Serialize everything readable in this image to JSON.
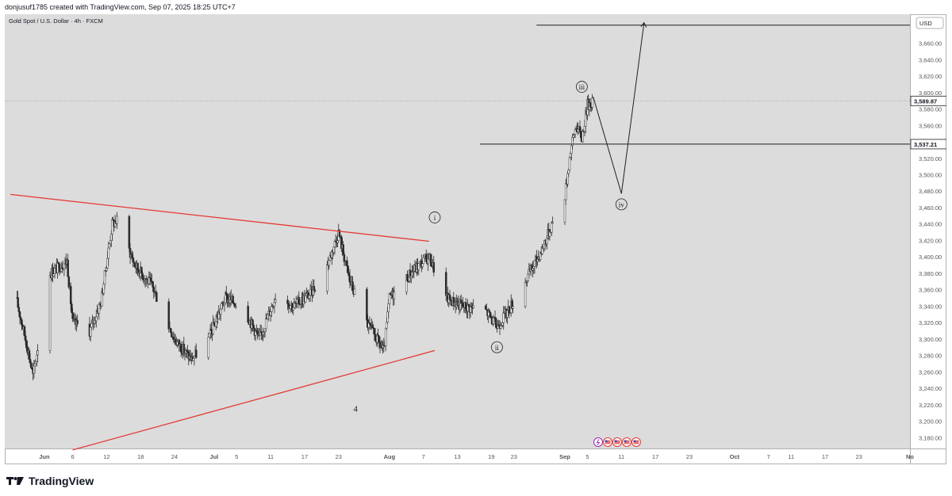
{
  "header": {
    "created_by": "donjusuf1785 created with TradingView.com, Sep 07, 2025 18:25 UTC+7"
  },
  "footer": {
    "brand": "TradingView",
    "logo_icon": "tradingview-logo-icon"
  },
  "colors": {
    "pane_bg": "#dcdcdc",
    "candle": "#2a2a2a",
    "trendline": "#e53935",
    "text": "#131722",
    "axis_text": "#555555"
  },
  "chart_data": {
    "type": "candlestick",
    "title": "Gold Spot / U.S. Dollar · 4h · FXCM",
    "currency_label": "USD",
    "ylim": [
      3165,
      3700
    ],
    "y_ticks": [
      "3,180.00",
      "3,200.00",
      "3,220.00",
      "3,240.00",
      "3,260.00",
      "3,280.00",
      "3,300.00",
      "3,320.00",
      "3,340.00",
      "3,360.00",
      "3,380.00",
      "3,400.00",
      "3,420.00",
      "3,440.00",
      "3,460.00",
      "3,480.00",
      "3,500.00",
      "3,520.00",
      "3,540.00",
      "3,560.00",
      "3,580.00",
      "3,600.00",
      "3,620.00",
      "3,640.00",
      "3,660.00"
    ],
    "x_ticks": [
      {
        "label": "Jun",
        "date": "2025-06-01",
        "bold": true
      },
      {
        "label": "6",
        "date": "2025-06-06"
      },
      {
        "label": "12",
        "date": "2025-06-12"
      },
      {
        "label": "18",
        "date": "2025-06-18"
      },
      {
        "label": "24",
        "date": "2025-06-24"
      },
      {
        "label": "Jul",
        "date": "2025-07-01",
        "bold": true
      },
      {
        "label": "5",
        "date": "2025-07-05"
      },
      {
        "label": "11",
        "date": "2025-07-11"
      },
      {
        "label": "17",
        "date": "2025-07-17"
      },
      {
        "label": "23",
        "date": "2025-07-23"
      },
      {
        "label": "Aug",
        "date": "2025-08-01",
        "bold": true
      },
      {
        "label": "7",
        "date": "2025-08-07"
      },
      {
        "label": "13",
        "date": "2025-08-13"
      },
      {
        "label": "19",
        "date": "2025-08-19"
      },
      {
        "label": "23",
        "date": "2025-08-23"
      },
      {
        "label": "Sep",
        "date": "2025-09-01",
        "bold": true
      },
      {
        "label": "5",
        "date": "2025-09-05"
      },
      {
        "label": "11",
        "date": "2025-09-11"
      },
      {
        "label": "17",
        "date": "2025-09-17"
      },
      {
        "label": "23",
        "date": "2025-09-23"
      },
      {
        "label": "Oct",
        "date": "2025-10-01",
        "bold": true
      },
      {
        "label": "7",
        "date": "2025-10-07"
      },
      {
        "label": "11",
        "date": "2025-10-11"
      },
      {
        "label": "17",
        "date": "2025-10-17"
      },
      {
        "label": "23",
        "date": "2025-10-23"
      },
      {
        "label": "No",
        "date": "2025-11-01",
        "bold": true
      }
    ],
    "price_path": [
      [
        "2025-05-27",
        3350
      ],
      [
        "2025-05-29",
        3290
      ],
      [
        "2025-05-30",
        3255
      ],
      [
        "2025-06-02",
        3380
      ],
      [
        "2025-06-05",
        3395
      ],
      [
        "2025-06-06",
        3320
      ],
      [
        "2025-06-09",
        3310
      ],
      [
        "2025-06-11",
        3345
      ],
      [
        "2025-06-13",
        3440
      ],
      [
        "2025-06-14",
        3445
      ],
      [
        "2025-06-17",
        3390
      ],
      [
        "2025-06-20",
        3365
      ],
      [
        "2025-06-24",
        3300
      ],
      [
        "2025-06-27",
        3275
      ],
      [
        "2025-06-30",
        3300
      ],
      [
        "2025-07-03",
        3350
      ],
      [
        "2025-07-06",
        3340
      ],
      [
        "2025-07-09",
        3300
      ],
      [
        "2025-07-12",
        3355
      ],
      [
        "2025-07-15",
        3340
      ],
      [
        "2025-07-18",
        3355
      ],
      [
        "2025-07-21",
        3390
      ],
      [
        "2025-07-23",
        3430
      ],
      [
        "2025-07-25",
        3370
      ],
      [
        "2025-07-28",
        3320
      ],
      [
        "2025-07-31",
        3285
      ],
      [
        "2025-08-01",
        3350
      ],
      [
        "2025-08-04",
        3375
      ],
      [
        "2025-08-07",
        3395
      ],
      [
        "2025-08-08",
        3400
      ],
      [
        "2025-08-11",
        3350
      ],
      [
        "2025-08-14",
        3340
      ],
      [
        "2025-08-18",
        3335
      ],
      [
        "2025-08-20",
        3315
      ],
      [
        "2025-08-22",
        3335
      ],
      [
        "2025-08-25",
        3370
      ],
      [
        "2025-08-28",
        3410
      ],
      [
        "2025-08-30",
        3445
      ],
      [
        "2025-09-01",
        3475
      ],
      [
        "2025-09-02",
        3530
      ],
      [
        "2025-09-03",
        3560
      ],
      [
        "2025-09-04",
        3545
      ],
      [
        "2025-09-05",
        3585
      ],
      [
        "2025-09-06",
        3590
      ]
    ],
    "price_badges": [
      {
        "value": 3589.87,
        "label": "3,589.87",
        "style": "dotted"
      },
      {
        "value": 3537.21,
        "label": "3,537.21",
        "style": "solid"
      }
    ],
    "hlines": [
      {
        "value": 3537.21,
        "from": "2025-08-17",
        "to": "axis"
      },
      {
        "value": 3682,
        "from": "2025-08-27",
        "to": "axis"
      }
    ],
    "trendlines": [
      {
        "from": [
          "2025-05-26",
          3476
        ],
        "to": [
          "2025-08-08",
          3419
        ],
        "color": "#e53935"
      },
      {
        "from": [
          "2025-06-06",
          3165
        ],
        "to": [
          "2025-08-09",
          3286
        ],
        "color": "#e53935"
      }
    ],
    "projection": [
      [
        "2025-09-06",
        3595
      ],
      [
        "2025-09-11",
        3477
      ],
      [
        "2025-09-15",
        3685
      ]
    ],
    "wave_labels": [
      {
        "text": "i",
        "date": "2025-08-09",
        "price": 3448,
        "circled": true
      },
      {
        "text": "ii",
        "date": "2025-08-20",
        "price": 3290,
        "circled": true
      },
      {
        "text": "iii",
        "date": "2025-09-04",
        "price": 3607,
        "circled": true
      },
      {
        "text": "iv",
        "date": "2025-09-11",
        "price": 3464,
        "circled": true
      },
      {
        "text": "4",
        "date": "2025-07-26",
        "price": 3215,
        "circled": false
      }
    ],
    "event_icons": [
      "lightning-icon",
      "us-flag-icon",
      "us-flag-icon",
      "us-flag-icon",
      "us-flag-icon"
    ]
  }
}
